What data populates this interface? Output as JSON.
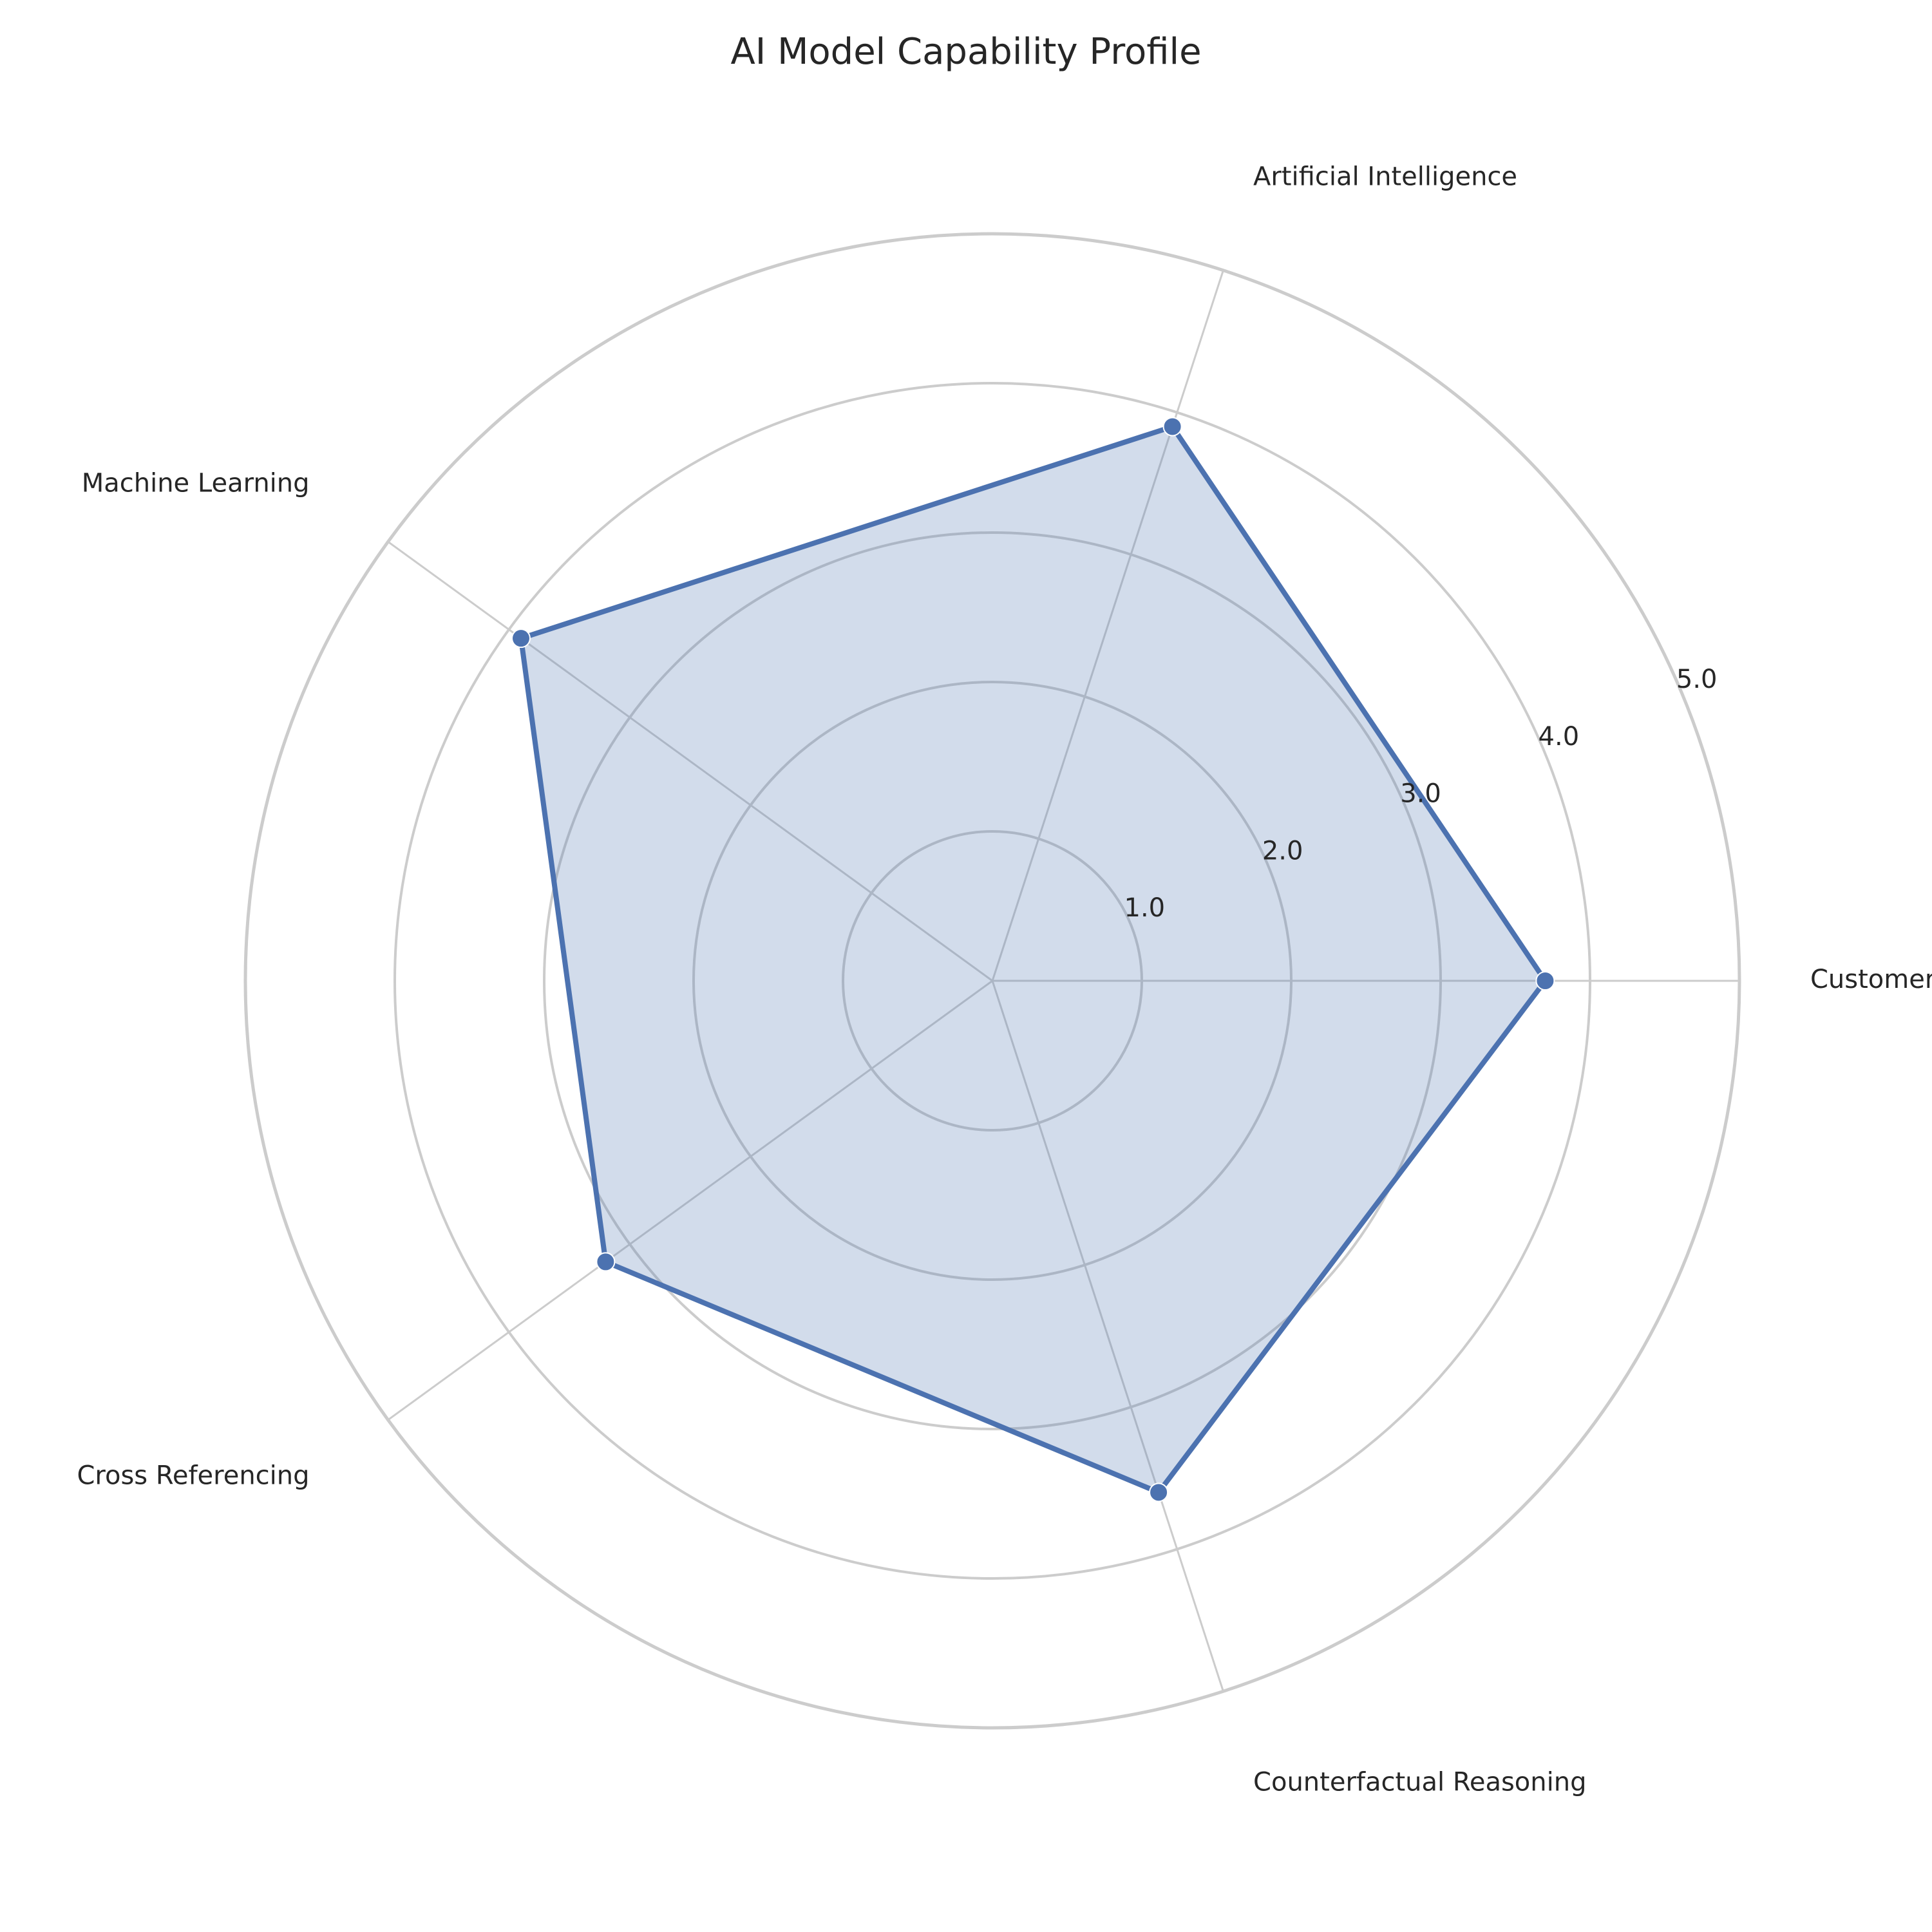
{
  "chart_data": {
    "type": "radar",
    "title": "AI Model Capability Profile",
    "categories": [
      "Customer Experience",
      "Artificial Intelligence",
      "Machine Learning",
      "Cross Referencing",
      "Counterfactual Reasoning"
    ],
    "series": [
      {
        "values": [
          3.7,
          3.9,
          3.9,
          3.2,
          3.6
        ]
      }
    ],
    "rlim": [
      0,
      5
    ],
    "rticks": [
      "1.0",
      "2.0",
      "3.0",
      "4.0",
      "5.0"
    ],
    "grid": true,
    "colors": {
      "line": "#4c72b0",
      "fill": "#4c72b0",
      "grid": "#cccccc",
      "text": "#262626"
    }
  }
}
